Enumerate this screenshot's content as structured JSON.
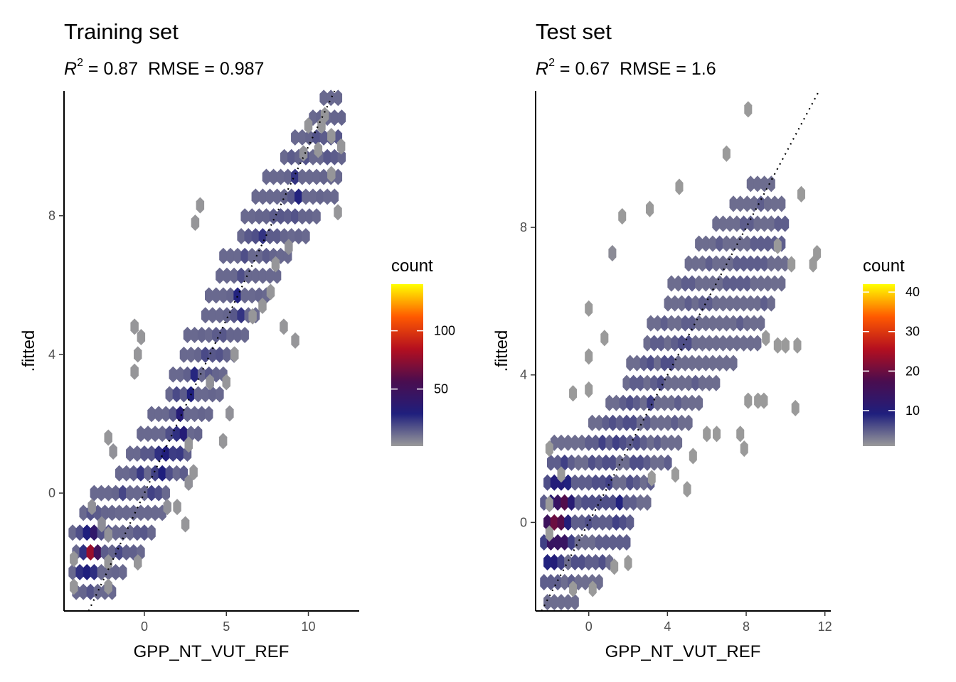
{
  "chart_data": [
    {
      "type": "hexbin",
      "title": "Training set",
      "subtitle": {
        "r2_prefix": "R",
        "r2_sup": "2",
        "r2_value": " = 0.87",
        "rmse": "RMSE = 0.987"
      },
      "xlabel": "GPP_NT_VUT_REF",
      "ylabel": ".fitted",
      "xlim": [
        -4.9,
        13.1
      ],
      "ylim": [
        -3.4,
        11.6
      ],
      "xticks": [
        0,
        5,
        10
      ],
      "yticks": [
        0,
        4,
        8
      ],
      "reference_line": {
        "type": "identity",
        "style": "dotted"
      },
      "legend": {
        "title": "count",
        "position": "right",
        "range": [
          1,
          140
        ],
        "breaks": [
          50,
          100
        ]
      },
      "hex_size": [
        0.25,
        0.38
      ],
      "bins": [
        {
          "x": -4.3,
          "y": -1.9,
          "count": 2
        },
        {
          "x": -4.3,
          "y": -2.7,
          "count": 2
        },
        {
          "x": -2.2,
          "y": -2.7,
          "count": 2
        },
        {
          "x": -2.2,
          "y": -2.0,
          "count": 2
        },
        {
          "x": -2.2,
          "y": -1.2,
          "count": 3
        },
        {
          "x": -0.4,
          "y": -2.0,
          "count": 2
        },
        {
          "x": -2.2,
          "y": 1.6,
          "count": 2
        },
        {
          "x": -1.9,
          "y": 1.2,
          "count": 3
        },
        {
          "x": -0.4,
          "y": 4.0,
          "count": 2
        },
        {
          "x": -0.6,
          "y": 3.5,
          "count": 2
        },
        {
          "x": -0.6,
          "y": 4.8,
          "count": 2
        },
        {
          "x": -0.2,
          "y": 4.5,
          "count": 2
        },
        {
          "x": 3.1,
          "y": 7.8,
          "count": 2
        },
        {
          "x": 3.4,
          "y": 8.3,
          "count": 2
        },
        {
          "x": 4.0,
          "y": 3.2,
          "count": 3
        },
        {
          "x": 5.0,
          "y": 3.2,
          "count": 2
        },
        {
          "x": 5.5,
          "y": 4.0,
          "count": 2
        },
        {
          "x": 6.6,
          "y": 5.1,
          "count": 2
        },
        {
          "x": 7.2,
          "y": 5.4,
          "count": 2
        },
        {
          "x": 7.7,
          "y": 5.8,
          "count": 2
        },
        {
          "x": 8.0,
          "y": 6.6,
          "count": 2
        },
        {
          "x": 8.5,
          "y": 4.8,
          "count": 2
        },
        {
          "x": 9.2,
          "y": 4.4,
          "count": 2
        },
        {
          "x": 8.8,
          "y": 7.1,
          "count": 3
        },
        {
          "x": 9.7,
          "y": 9.8,
          "count": 3
        },
        {
          "x": 10.0,
          "y": 10.6,
          "count": 2
        },
        {
          "x": 10.8,
          "y": 10.6,
          "count": 2
        },
        {
          "x": 11.0,
          "y": 10.9,
          "count": 2
        },
        {
          "x": 11.4,
          "y": 10.3,
          "count": 2
        },
        {
          "x": 12.0,
          "y": 10.0,
          "count": 2
        },
        {
          "x": 11.8,
          "y": 8.1,
          "count": 2
        },
        {
          "x": 11.4,
          "y": 9.2,
          "count": 2
        },
        {
          "x": 10.6,
          "y": 9.9,
          "count": 2
        },
        {
          "x": 1.4,
          "y": -0.4,
          "count": 3
        },
        {
          "x": 2.0,
          "y": -0.4,
          "count": 2
        },
        {
          "x": 2.5,
          "y": -0.9,
          "count": 2
        },
        {
          "x": 2.7,
          "y": 0.3,
          "count": 3
        },
        {
          "x": 3.0,
          "y": 0.6,
          "count": 2
        },
        {
          "x": 2.7,
          "y": 1.4,
          "count": 2
        },
        {
          "x": 4.8,
          "y": 1.5,
          "count": 2
        },
        {
          "x": 5.2,
          "y": 2.3,
          "count": 3
        },
        {
          "x": -3.2,
          "y": -0.4,
          "count": 3
        },
        {
          "x": -2.6,
          "y": -0.9,
          "count": 4
        }
      ],
      "ridge": {
        "x": [
          -3.5,
          -1.5,
          0.0,
          1.0,
          2.0,
          3.0,
          4.0,
          5.0,
          6.0,
          7.0,
          8.0,
          9.0,
          10.0,
          11.5
        ],
        "y": [
          -1.8,
          -0.9,
          0.2,
          1.1,
          2.1,
          3.1,
          4.1,
          5.2,
          6.2,
          7.1,
          7.9,
          8.6,
          9.3,
          10.0
        ]
      }
    },
    {
      "type": "hexbin",
      "title": "Test set",
      "subtitle": {
        "r2_prefix": "R",
        "r2_sup": "2",
        "r2_value": " = 0.67",
        "rmse": "RMSE = 1.6"
      },
      "xlabel": "GPP_NT_VUT_REF",
      "ylabel": ".fitted",
      "xlim": [
        -2.7,
        12.3
      ],
      "ylim": [
        -2.4,
        11.7
      ],
      "xticks": [
        0,
        4,
        8,
        12
      ],
      "yticks": [
        0,
        4,
        8
      ],
      "reference_line": {
        "type": "identity",
        "style": "dotted"
      },
      "legend": {
        "title": "count",
        "position": "right",
        "range": [
          1,
          42
        ],
        "breaks": [
          10,
          20,
          30,
          40
        ]
      },
      "hex_size": [
        0.2,
        0.36
      ],
      "bins": [
        {
          "x": 8.1,
          "y": 11.2,
          "count": 1
        },
        {
          "x": 7.0,
          "y": 10.0,
          "count": 1
        },
        {
          "x": 4.6,
          "y": 9.1,
          "count": 1
        },
        {
          "x": 3.1,
          "y": 8.5,
          "count": 1
        },
        {
          "x": 1.7,
          "y": 8.3,
          "count": 1
        },
        {
          "x": 1.2,
          "y": 7.3,
          "count": 2
        },
        {
          "x": 10.8,
          "y": 8.9,
          "count": 1
        },
        {
          "x": 11.6,
          "y": 7.3,
          "count": 1
        },
        {
          "x": 10.3,
          "y": 7.0,
          "count": 1
        },
        {
          "x": 9.6,
          "y": 7.5,
          "count": 1
        },
        {
          "x": 0.0,
          "y": 5.8,
          "count": 1
        },
        {
          "x": 0.8,
          "y": 5.0,
          "count": 1
        },
        {
          "x": 0.0,
          "y": 4.5,
          "count": 1
        },
        {
          "x": 0.0,
          "y": 3.6,
          "count": 1
        },
        {
          "x": -0.8,
          "y": 3.5,
          "count": 1
        },
        {
          "x": -2.0,
          "y": 2.0,
          "count": 1
        },
        {
          "x": -1.4,
          "y": 1.3,
          "count": 1
        },
        {
          "x": -2.0,
          "y": 0.5,
          "count": 1
        },
        {
          "x": -2.0,
          "y": -0.3,
          "count": 1
        },
        {
          "x": -0.8,
          "y": -1.8,
          "count": 1
        },
        {
          "x": 0.2,
          "y": -1.8,
          "count": 1
        },
        {
          "x": 1.3,
          "y": -1.2,
          "count": 1
        },
        {
          "x": 2.0,
          "y": -1.1,
          "count": 1
        },
        {
          "x": 3.2,
          "y": 1.2,
          "count": 1
        },
        {
          "x": 4.4,
          "y": 1.3,
          "count": 1
        },
        {
          "x": 5.0,
          "y": 0.9,
          "count": 1
        },
        {
          "x": 5.3,
          "y": 1.8,
          "count": 1
        },
        {
          "x": 6.0,
          "y": 2.4,
          "count": 1
        },
        {
          "x": 6.5,
          "y": 2.4,
          "count": 1
        },
        {
          "x": 7.7,
          "y": 2.4,
          "count": 1
        },
        {
          "x": 7.9,
          "y": 2.0,
          "count": 1
        },
        {
          "x": 8.9,
          "y": 3.3,
          "count": 1
        },
        {
          "x": 10.5,
          "y": 3.1,
          "count": 1
        },
        {
          "x": 8.1,
          "y": 3.3,
          "count": 1
        },
        {
          "x": 8.6,
          "y": 3.3,
          "count": 1
        },
        {
          "x": 9.6,
          "y": 4.8,
          "count": 1
        },
        {
          "x": 10.0,
          "y": 4.8,
          "count": 1
        },
        {
          "x": 10.6,
          "y": 4.8,
          "count": 1
        },
        {
          "x": 9.0,
          "y": 5.0,
          "count": 1
        },
        {
          "x": 11.4,
          "y": 7.0,
          "count": 1
        }
      ],
      "ridge": {
        "x": [
          -1.7,
          -1.0,
          0.0,
          0.5,
          1.0,
          2.0,
          3.0,
          4.0,
          5.0,
          6.0,
          7.0,
          8.0,
          9.0
        ],
        "y": [
          0.0,
          -0.2,
          0.5,
          0.6,
          0.9,
          1.9,
          3.0,
          3.9,
          5.0,
          5.8,
          6.3,
          6.9,
          7.2
        ]
      }
    }
  ]
}
